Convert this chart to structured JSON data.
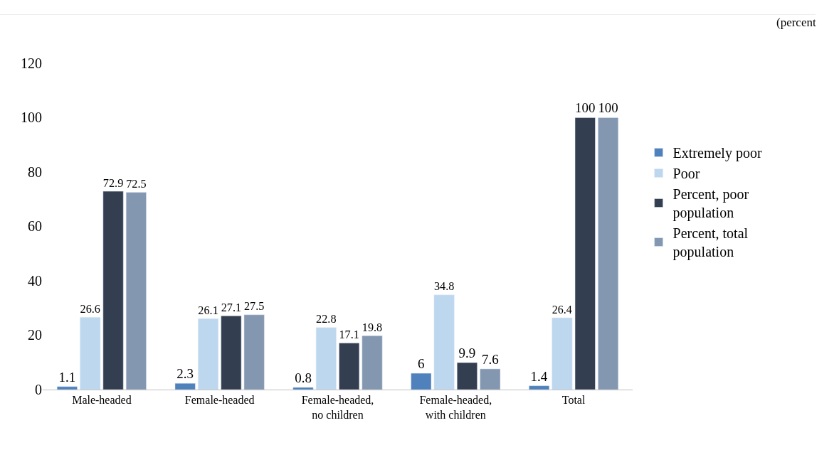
{
  "chart_data": {
    "type": "bar",
    "categories": [
      "Male-headed",
      "Female-headed",
      "Female-headed,\nno children",
      "Female-headed,\nwith children",
      "Total"
    ],
    "series": [
      {
        "name": "Extremely poor",
        "color": "#4f81bd",
        "values": [
          1.1,
          2.3,
          0.8,
          6,
          1.4
        ]
      },
      {
        "name": "Poor",
        "color": "#bdd7ee",
        "values": [
          26.6,
          26.1,
          22.8,
          34.8,
          26.4
        ]
      },
      {
        "name": "Percent, poor\npopulation",
        "color": "#333f50",
        "values": [
          72.9,
          27.1,
          17.1,
          9.9,
          100
        ]
      },
      {
        "name": "Percent, total\npopulation",
        "color": "#8497b0",
        "values": [
          72.5,
          27.5,
          19.8,
          7.6,
          100
        ]
      }
    ],
    "ylim": [
      0,
      138
    ],
    "yticks": [
      0,
      20,
      40,
      60,
      80,
      100,
      120
    ],
    "legend": "right",
    "data_labels": true,
    "annotations": [
      "(percent"
    ]
  }
}
